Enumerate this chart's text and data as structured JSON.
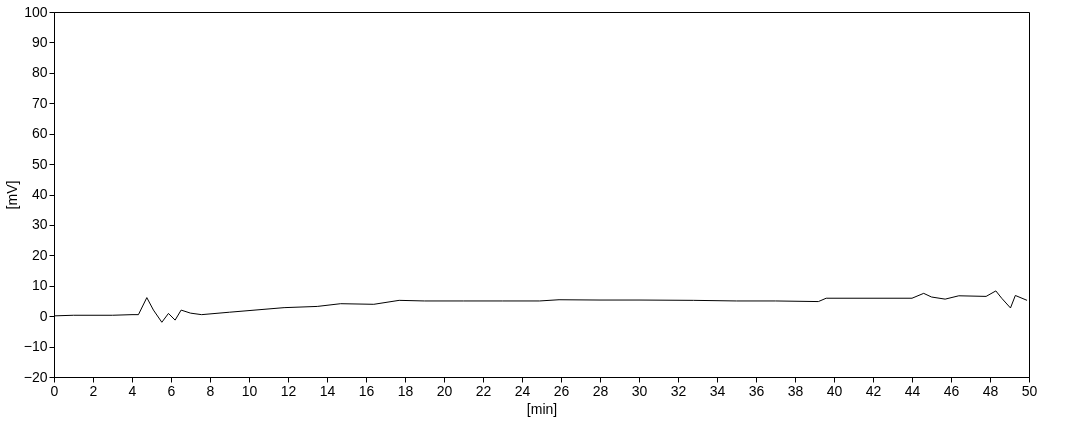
{
  "chart_data": {
    "type": "line",
    "xlabel": "[min]",
    "ylabel": "[mV]",
    "x": [
      0,
      1,
      2,
      3,
      4,
      4.33,
      4.76,
      5.1,
      5.53,
      5.87,
      6.21,
      6.52,
      7.0,
      7.57,
      9.0,
      11.8,
      13.5,
      14.7,
      16.4,
      17.7,
      19.0,
      21.0,
      23.0,
      24.9,
      25.9,
      28.0,
      30.0,
      32.8,
      35.0,
      37.0,
      39.2,
      39.6,
      42.0,
      44.0,
      44.6,
      45.0,
      45.7,
      46.4,
      47.8,
      48.3,
      48.6,
      49.05,
      49.3,
      49.9
    ],
    "series": [
      {
        "color": "#000000",
        "values": [
          0.1,
          0.3,
          0.3,
          0.3,
          0.5,
          0.5,
          6.1,
          2.0,
          -2.0,
          0.9,
          -1.3,
          2.0,
          1.0,
          0.5,
          1.3,
          2.8,
          3.2,
          4.1,
          3.9,
          5.2,
          5.0,
          5.0,
          5.0,
          5.0,
          5.4,
          5.3,
          5.3,
          5.2,
          5.0,
          5.0,
          4.8,
          5.9,
          5.9,
          5.9,
          7.5,
          6.3,
          5.6,
          6.7,
          6.5,
          8.3,
          5.9,
          2.7,
          6.8,
          5.2
        ]
      }
    ],
    "xlim": [
      0,
      50
    ],
    "xticks": [
      0,
      2,
      4,
      6,
      8,
      10,
      12,
      14,
      16,
      18,
      20,
      22,
      24,
      26,
      28,
      30,
      32,
      34,
      36,
      38,
      40,
      42,
      44,
      46,
      48,
      50
    ],
    "ylim": [
      -20,
      100
    ],
    "yticks": [
      -20,
      -10,
      0,
      10,
      20,
      30,
      40,
      50,
      60,
      70,
      80,
      90,
      100
    ],
    "grid": false,
    "marker": "none",
    "line_style": "solid"
  }
}
